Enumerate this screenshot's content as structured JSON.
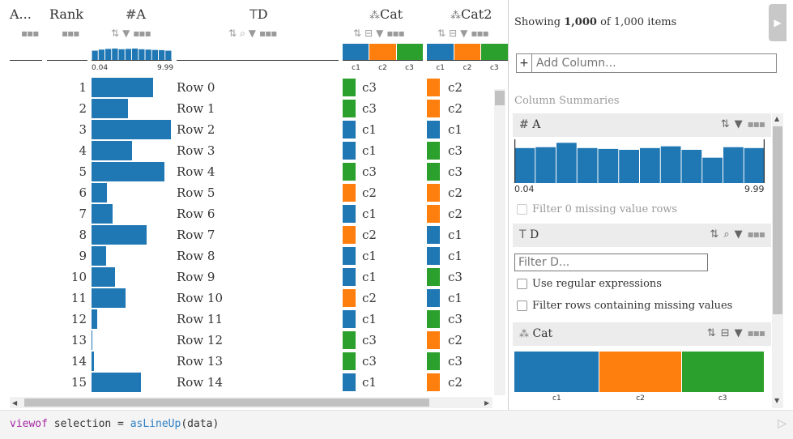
{
  "table": {
    "columns": {
      "aggregate": {
        "title": "A..."
      },
      "rank": {
        "title": "Rank"
      },
      "a": {
        "title": "A",
        "icon": "hash-icon",
        "min_label": "0.04",
        "max_label": "9.99",
        "histogram": [
          0.52,
          0.58,
          0.62,
          0.64,
          0.6,
          0.62,
          0.64,
          0.6,
          0.58,
          0.56,
          0.55,
          0.52
        ]
      },
      "d": {
        "title": "D",
        "icon": "text-icon"
      },
      "cat": {
        "title": "Cat",
        "icon": "categorical-icon",
        "categories": [
          "c1",
          "c2",
          "c3"
        ]
      },
      "cat2": {
        "title": "Cat2",
        "icon": "categorical-icon",
        "categories": [
          "c1",
          "c2",
          "c3"
        ]
      }
    },
    "colors": {
      "bar": "#1f77b4",
      "c1": "#1f77b4",
      "c2": "#ff7f0e",
      "c3": "#2ca02c"
    },
    "rows": [
      {
        "rank": "1",
        "a": 0.77,
        "d": "Row 0",
        "cat": "c3",
        "cat2": "c2"
      },
      {
        "rank": "2",
        "a": 0.45,
        "d": "Row 1",
        "cat": "c3",
        "cat2": "c2"
      },
      {
        "rank": "3",
        "a": 0.99,
        "d": "Row 2",
        "cat": "c1",
        "cat2": "c1"
      },
      {
        "rank": "4",
        "a": 0.5,
        "d": "Row 3",
        "cat": "c1",
        "cat2": "c3"
      },
      {
        "rank": "5",
        "a": 0.91,
        "d": "Row 4",
        "cat": "c3",
        "cat2": "c3"
      },
      {
        "rank": "6",
        "a": 0.19,
        "d": "Row 5",
        "cat": "c2",
        "cat2": "c2"
      },
      {
        "rank": "7",
        "a": 0.26,
        "d": "Row 6",
        "cat": "c1",
        "cat2": "c2"
      },
      {
        "rank": "8",
        "a": 0.69,
        "d": "Row 7",
        "cat": "c2",
        "cat2": "c1"
      },
      {
        "rank": "9",
        "a": 0.18,
        "d": "Row 8",
        "cat": "c1",
        "cat2": "c1"
      },
      {
        "rank": "10",
        "a": 0.29,
        "d": "Row 9",
        "cat": "c1",
        "cat2": "c3"
      },
      {
        "rank": "11",
        "a": 0.42,
        "d": "Row 10",
        "cat": "c2",
        "cat2": "c1"
      },
      {
        "rank": "12",
        "a": 0.07,
        "d": "Row 11",
        "cat": "c1",
        "cat2": "c3"
      },
      {
        "rank": "13",
        "a": 0.01,
        "d": "Row 12",
        "cat": "c3",
        "cat2": "c2"
      },
      {
        "rank": "14",
        "a": 0.03,
        "d": "Row 13",
        "cat": "c3",
        "cat2": "c3"
      },
      {
        "rank": "15",
        "a": 0.62,
        "d": "Row 14",
        "cat": "c1",
        "cat2": "c2"
      }
    ]
  },
  "panel": {
    "showing_prefix": "Showing ",
    "showing_count": "1,000",
    "showing_suffix": " of 1,000 items",
    "add_column_placeholder": "Add Column...",
    "summaries_title": "Column Summaries",
    "summary_a": {
      "name": "A",
      "min_label": "0.04",
      "max_label": "9.99",
      "histogram": [
        0.8,
        0.82,
        0.92,
        0.8,
        0.78,
        0.76,
        0.8,
        0.84,
        0.76,
        0.58,
        0.82,
        0.8
      ],
      "missing_filter_label": "Filter 0 missing value rows"
    },
    "summary_d": {
      "name": "D",
      "filter_placeholder": "Filter D...",
      "regex_label": "Use regular expressions",
      "missing_label": "Filter rows containing missing values"
    },
    "summary_cat": {
      "name": "Cat",
      "categories": [
        "c1",
        "c2",
        "c3"
      ],
      "shares": [
        0.34,
        0.33,
        0.33
      ]
    }
  },
  "code": {
    "keyword": "viewof",
    "variable": " selection = ",
    "function": "asLineUp",
    "args": "(data)"
  }
}
